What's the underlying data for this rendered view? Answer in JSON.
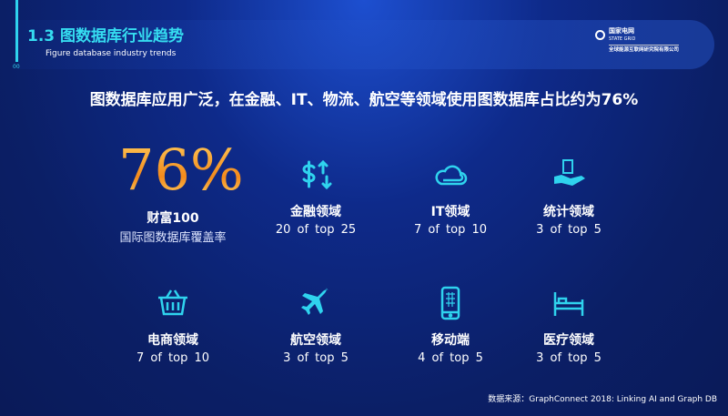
{
  "header": {
    "title": "1.3 图数据库行业趋势",
    "subtitle": "Figure database industry trends",
    "page_marker": "00"
  },
  "logo": {
    "cn": "国家电网",
    "en": "STATE GRID",
    "org": "全球能源互联网研究院有限公司"
  },
  "headline": "图数据库应用广泛，在金融、IT、物流、航空等领域使用图数据库占比约为76%",
  "highlight": {
    "value": "76%",
    "label": "财富100",
    "desc": "国际图数据库覆盖率"
  },
  "accent": "#2fd3ee",
  "domains": [
    {
      "icon": "dollar-exchange-icon",
      "name": "金融领域",
      "value": "20 of top 25"
    },
    {
      "icon": "cloud-icon",
      "name": "IT领域",
      "value": "7 of top 10"
    },
    {
      "icon": "hand-certificate-icon",
      "name": "统计领域",
      "value": "3 of top 5"
    },
    {
      "icon": "shopping-basket-icon",
      "name": "电商领域",
      "value": "7 of top 10"
    },
    {
      "icon": "airplane-icon",
      "name": "航空领域",
      "value": "3 of top 5"
    },
    {
      "icon": "mobile-phone-icon",
      "name": "移动端",
      "value": "4 of top 5"
    },
    {
      "icon": "hospital-bed-icon",
      "name": "医疗领域",
      "value": "3 of top 5"
    }
  ],
  "source": "数据来源：GraphConnect 2018: Linking AI and Graph DB"
}
